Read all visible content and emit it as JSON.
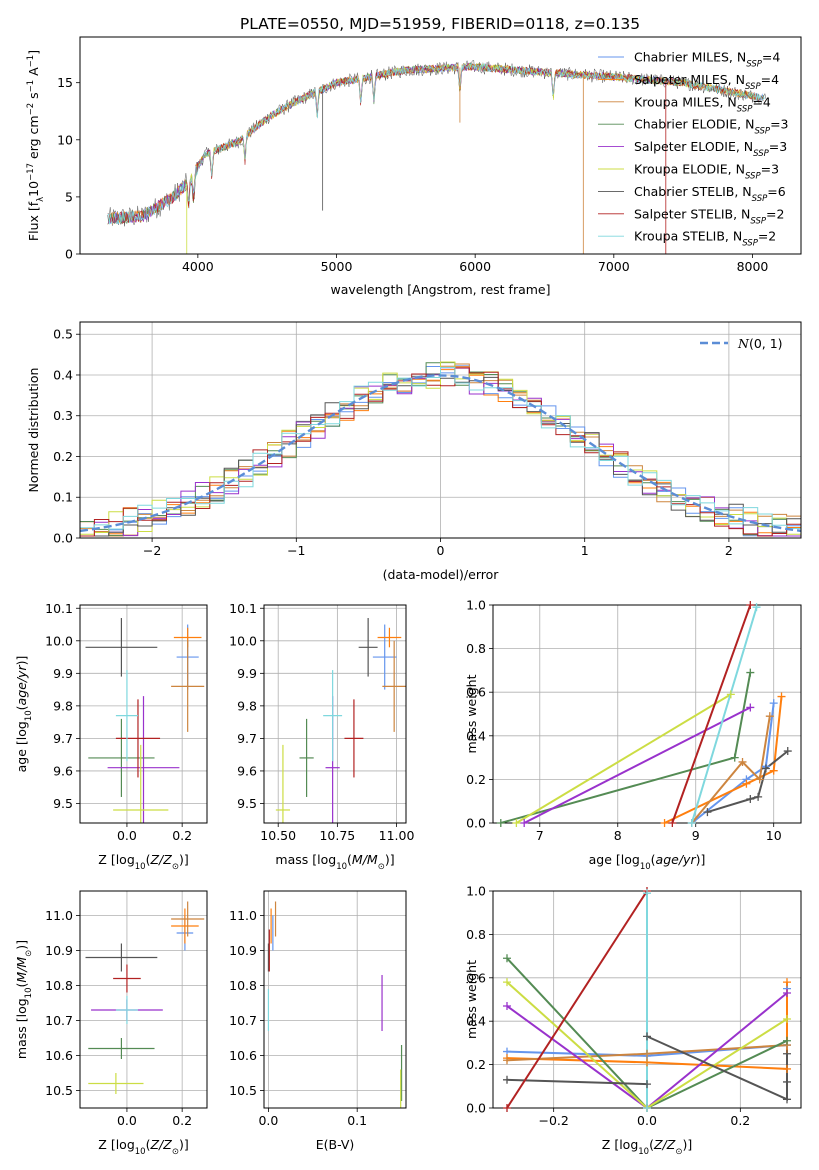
{
  "figure_title": "PLATE=0550, MJD=51959, FIBERID=0118, z=0.135",
  "colors": {
    "series": [
      "#6495ed",
      "#ff7f0e",
      "#cd853f",
      "#548b54",
      "#9932cc",
      "#ccdd44",
      "#555555",
      "#b22222",
      "#7fd8de"
    ],
    "norm_line": "#5b8dd6",
    "grid": "#b0b0b0"
  },
  "series_names": [
    "Chabrier MILES, N_SSP=4",
    "Salpeter MILES, N_SSP=4",
    "Kroupa MILES, N_SSP=4",
    "Chabrier ELODIE, N_SSP=3",
    "Salpeter ELODIE, N_SSP=3",
    "Kroupa ELODIE, N_SSP=3",
    "Chabrier STELIB, N_SSP=6",
    "Salpeter STELIB, N_SSP=2",
    "Kroupa STELIB, N_SSP=2"
  ],
  "chart_data": [
    {
      "id": "spectrum",
      "type": "line",
      "xlabel": "wavelength [Angstrom, rest frame]",
      "ylabel": "Flux [f_λ 10^-17 erg cm^-2 s^-1 A^-1]",
      "xlim": [
        3150,
        8350
      ],
      "ylim": [
        0,
        19
      ],
      "xticks": [
        4000,
        5000,
        6000,
        7000,
        8000
      ],
      "yticks": [
        0,
        5,
        10,
        15
      ],
      "grid": false,
      "legend": "top-right",
      "continuum_x": [
        3350,
        3600,
        3800,
        3950,
        4050,
        4300,
        4500,
        4700,
        5000,
        5200,
        5500,
        6000,
        6500,
        7000,
        7500,
        8100
      ],
      "continuum_y": [
        3.1,
        3.3,
        4.8,
        6.5,
        8.7,
        9.9,
        11.9,
        13.3,
        15.0,
        15.4,
        16.1,
        16.4,
        15.9,
        15.5,
        15.0,
        13.6
      ]
    },
    {
      "id": "residuals",
      "type": "line",
      "xlabel": "(data-model)/error",
      "ylabel": "Normed distribution",
      "xlim": [
        -2.5,
        2.5
      ],
      "ylim": [
        0,
        0.53
      ],
      "xticks": [
        -2,
        -1,
        0,
        1,
        2
      ],
      "yticks": [
        0.0,
        0.1,
        0.2,
        0.3,
        0.4,
        0.5
      ],
      "grid": true,
      "legend": "top-right",
      "legend_label": "N(0,1)",
      "bin_width": 0.1
    },
    {
      "id": "age_vs_Z",
      "type": "scatter",
      "xlabel": "Z [log10(Z/Z⊙)]",
      "ylabel": "age [log10(age/yr)]",
      "xlim": [
        -0.17,
        0.29
      ],
      "ylim": [
        9.44,
        10.11
      ],
      "xticks": [
        0.0,
        0.2
      ],
      "yticks": [
        9.5,
        9.6,
        9.7,
        9.8,
        9.9,
        10.0,
        10.1
      ],
      "points": [
        {
          "x": 0.22,
          "y": 9.95,
          "xe": 0.04,
          "ye": 0.1
        },
        {
          "x": 0.22,
          "y": 10.01,
          "xe": 0.05,
          "ye": 0.03
        },
        {
          "x": 0.22,
          "y": 9.86,
          "xe": 0.06,
          "ye": 0.14
        },
        {
          "x": -0.02,
          "y": 9.64,
          "xe": 0.12,
          "ye": 0.12
        },
        {
          "x": 0.06,
          "y": 9.61,
          "xe": 0.13,
          "ye": 0.22
        },
        {
          "x": 0.05,
          "y": 9.48,
          "xe": 0.1,
          "ye": 0.2
        },
        {
          "x": -0.02,
          "y": 9.98,
          "xe": 0.13,
          "ye": 0.09
        },
        {
          "x": 0.04,
          "y": 9.7,
          "xe": 0.08,
          "ye": 0.12
        },
        {
          "x": 0.0,
          "y": 9.77,
          "xe": 0.04,
          "ye": 0.14
        }
      ]
    },
    {
      "id": "age_vs_mass",
      "type": "scatter",
      "xlabel": "mass [log10(M/M⊙)]",
      "ylabel": "",
      "xlim": [
        10.44,
        11.04
      ],
      "ylim": [
        9.44,
        10.11
      ],
      "xticks": [
        10.5,
        10.75,
        11.0
      ],
      "yticks": [
        9.5,
        9.6,
        9.7,
        9.8,
        9.9,
        10.0,
        10.1
      ],
      "points": [
        {
          "x": 10.95,
          "y": 9.95,
          "xe": 0.05,
          "ye": 0.1
        },
        {
          "x": 10.97,
          "y": 10.01,
          "xe": 0.05,
          "ye": 0.03
        },
        {
          "x": 10.99,
          "y": 9.86,
          "xe": 0.05,
          "ye": 0.14
        },
        {
          "x": 10.62,
          "y": 9.64,
          "xe": 0.03,
          "ye": 0.12
        },
        {
          "x": 10.73,
          "y": 9.61,
          "xe": 0.03,
          "ye": 0.22
        },
        {
          "x": 10.52,
          "y": 9.48,
          "xe": 0.03,
          "ye": 0.2
        },
        {
          "x": 10.88,
          "y": 9.98,
          "xe": 0.04,
          "ye": 0.09
        },
        {
          "x": 10.82,
          "y": 9.7,
          "xe": 0.04,
          "ye": 0.12
        },
        {
          "x": 10.73,
          "y": 9.77,
          "xe": 0.04,
          "ye": 0.14
        }
      ]
    },
    {
      "id": "massweight_vs_age",
      "type": "line",
      "xlabel": "age [log10(age/yr)]",
      "ylabel": "mass weight",
      "xlim": [
        6.4,
        10.35
      ],
      "ylim": [
        0,
        1
      ],
      "xticks": [
        7,
        8,
        9,
        10
      ],
      "yticks": [
        0.0,
        0.2,
        0.4,
        0.6,
        0.8,
        1.0
      ],
      "grid": true,
      "series": [
        {
          "x": [
            8.95,
            9.65,
            9.9,
            10.0
          ],
          "y": [
            0.0,
            0.2,
            0.26,
            0.55
          ]
        },
        {
          "x": [
            8.6,
            9.65,
            10.0,
            10.1
          ],
          "y": [
            0.0,
            0.18,
            0.24,
            0.58
          ]
        },
        {
          "x": [
            8.95,
            9.6,
            9.82,
            9.95
          ],
          "y": [
            0.0,
            0.28,
            0.2,
            0.49
          ]
        },
        {
          "x": [
            6.5,
            9.5,
            9.7
          ],
          "y": [
            0.0,
            0.3,
            0.69
          ]
        },
        {
          "x": [
            6.8,
            9.7
          ],
          "y": [
            0.0,
            0.53
          ]
        },
        {
          "x": [
            6.7,
            9.45
          ],
          "y": [
            0.0,
            0.59
          ]
        },
        {
          "x": [
            9.15,
            9.7,
            9.8,
            9.9,
            10.18
          ],
          "y": [
            0.05,
            0.11,
            0.12,
            0.25,
            0.33
          ]
        },
        {
          "x": [
            8.7,
            9.7
          ],
          "y": [
            0.0,
            1.0
          ]
        },
        {
          "x": [
            8.95,
            9.78
          ],
          "y": [
            0.0,
            0.99
          ]
        }
      ]
    },
    {
      "id": "mass_vs_Z",
      "type": "scatter",
      "xlabel": "Z [log10(Z/Z⊙)]",
      "ylabel": "mass [log10(M/M⊙)]",
      "xlim": [
        -0.17,
        0.29
      ],
      "ylim": [
        10.45,
        11.07
      ],
      "xticks": [
        0.0,
        0.2
      ],
      "yticks": [
        10.5,
        10.6,
        10.7,
        10.8,
        10.9,
        11.0
      ],
      "points": [
        {
          "x": 0.21,
          "y": 10.95,
          "xe": 0.03,
          "ye": 0.05
        },
        {
          "x": 0.21,
          "y": 10.97,
          "xe": 0.05,
          "ye": 0.05
        },
        {
          "x": 0.22,
          "y": 10.99,
          "xe": 0.06,
          "ye": 0.05
        },
        {
          "x": -0.02,
          "y": 10.62,
          "xe": 0.12,
          "ye": 0.03
        },
        {
          "x": 0.0,
          "y": 10.73,
          "xe": 0.13,
          "ye": 0.03
        },
        {
          "x": -0.04,
          "y": 10.52,
          "xe": 0.1,
          "ye": 0.03
        },
        {
          "x": -0.02,
          "y": 10.88,
          "xe": 0.13,
          "ye": 0.04
        },
        {
          "x": 0.0,
          "y": 10.82,
          "xe": 0.05,
          "ye": 0.04
        },
        {
          "x": 0.0,
          "y": 10.73,
          "xe": 0.04,
          "ye": 0.04
        }
      ]
    },
    {
      "id": "mass_vs_ebv",
      "type": "scatter",
      "xlabel": "E(B-V)",
      "ylabel": "",
      "xlim": [
        -0.005,
        0.155
      ],
      "ylim": [
        10.45,
        11.07
      ],
      "xticks": [
        0.0,
        0.1
      ],
      "yticks": [
        10.5,
        10.6,
        10.7,
        10.8,
        10.9,
        11.0
      ],
      "points": [
        {
          "x": 0.005,
          "y": 10.95,
          "xe": 0,
          "ye": 0.05
        },
        {
          "x": 0.003,
          "y": 10.97,
          "xe": 0,
          "ye": 0.05
        },
        {
          "x": 0.008,
          "y": 10.99,
          "xe": 0,
          "ye": 0.05
        },
        {
          "x": 0.15,
          "y": 10.55,
          "xe": 0,
          "ye": 0.08
        },
        {
          "x": 0.128,
          "y": 10.75,
          "xe": 0,
          "ye": 0.08
        },
        {
          "x": 0.149,
          "y": 10.5,
          "xe": 0,
          "ye": 0.06
        },
        {
          "x": 0.0,
          "y": 10.88,
          "xe": 0,
          "ye": 0.04
        },
        {
          "x": 0.001,
          "y": 10.9,
          "xe": 0,
          "ye": 0.06
        },
        {
          "x": 0.0,
          "y": 10.73,
          "xe": 0,
          "ye": 0.06
        }
      ]
    },
    {
      "id": "massweight_vs_Z",
      "type": "line",
      "xlabel": "Z [log10(Z/Z⊙)]",
      "ylabel": "mass weight",
      "xlim": [
        -0.33,
        0.33
      ],
      "ylim": [
        0,
        1
      ],
      "xticks": [
        -0.2,
        0.0,
        0.2
      ],
      "yticks": [
        0.0,
        0.2,
        0.4,
        0.6,
        0.8,
        1.0
      ],
      "grid": true,
      "series": [
        {
          "x": [
            -0.3,
            0.0,
            0.3,
            0.3
          ],
          "y": [
            0.26,
            0.24,
            0.29,
            0.55
          ]
        },
        {
          "x": [
            -0.3,
            0.0,
            0.3,
            0.3
          ],
          "y": [
            0.23,
            0.21,
            0.18,
            0.58
          ]
        },
        {
          "x": [
            -0.3,
            0.0,
            0.3
          ],
          "y": [
            0.22,
            0.25,
            0.29
          ]
        },
        {
          "x": [
            -0.3,
            0.0,
            0.3
          ],
          "y": [
            0.69,
            0.0,
            0.31
          ]
        },
        {
          "x": [
            -0.3,
            0.0,
            0.3
          ],
          "y": [
            0.47,
            0.0,
            0.53
          ]
        },
        {
          "x": [
            -0.3,
            0.0,
            0.3
          ],
          "y": [
            0.58,
            0.0,
            0.41
          ]
        },
        {
          "x": [
            -0.3,
            0.0,
            0.0,
            0.3,
            0.3,
            0.3
          ],
          "y": [
            0.13,
            0.11,
            0.33,
            0.04,
            0.12,
            0.25
          ]
        },
        {
          "x": [
            -0.3,
            0.0
          ],
          "y": [
            0.0,
            1.0
          ]
        },
        {
          "x": [
            0.0,
            0.0
          ],
          "y": [
            0.0,
            0.99
          ]
        }
      ]
    }
  ]
}
